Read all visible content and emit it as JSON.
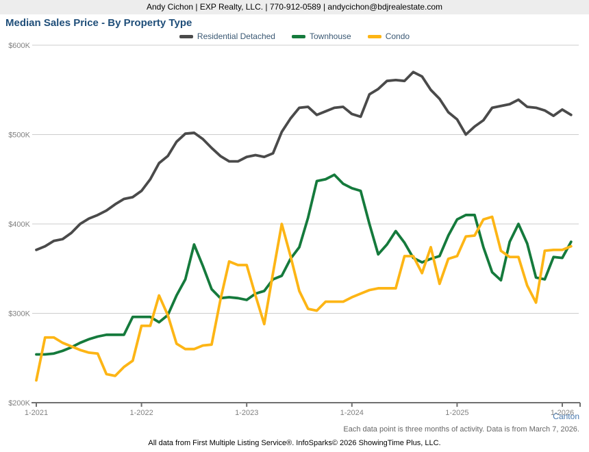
{
  "header": {
    "contact": "Andy Cichon | EXP Realty, LLC. | 770-912-0589 | andycichon@bdjrealestate.com"
  },
  "title": "Median Sales Price - By Property Type",
  "location_label": "Canton",
  "footnote": "Each data point is three months of activity. Data is from March 7, 2026.",
  "attribution": "All data from First Multiple Listing Service®. InfoSparks© 2026 ShowingTime Plus, LLC.",
  "colors": {
    "header_bg": "#EDEDED",
    "title": "#1F4E79",
    "legend_text": "#3A5873",
    "gridline": "#CCCCCC",
    "axis_line": "#6F6F6F",
    "axis_label": "#808080",
    "location_label": "#4677AE",
    "footnote_text": "#666666"
  },
  "chart_data": {
    "type": "line",
    "title": "Median Sales Price - By Property Type",
    "x_unit": "month",
    "x_start": "1-2021",
    "x_end": "2-2026",
    "x_tick_labels": [
      "1-2021",
      "1-2022",
      "1-2023",
      "1-2024",
      "1-2025",
      "1-2026"
    ],
    "y_tick_labels": [
      "$200K",
      "$300K",
      "$400K",
      "$500K",
      "$600K"
    ],
    "y_ticks_k": [
      200,
      300,
      400,
      500,
      600
    ],
    "ylim_k": [
      200,
      600
    ],
    "y_unit": "USD (thousands)",
    "grid": "horizontal",
    "legend_position": "top",
    "months": [
      "1-2021",
      "2-2021",
      "3-2021",
      "4-2021",
      "5-2021",
      "6-2021",
      "7-2021",
      "8-2021",
      "9-2021",
      "10-2021",
      "11-2021",
      "12-2021",
      "1-2022",
      "2-2022",
      "3-2022",
      "4-2022",
      "5-2022",
      "6-2022",
      "7-2022",
      "8-2022",
      "9-2022",
      "10-2022",
      "11-2022",
      "12-2022",
      "1-2023",
      "2-2023",
      "3-2023",
      "4-2023",
      "5-2023",
      "6-2023",
      "7-2023",
      "8-2023",
      "9-2023",
      "10-2023",
      "11-2023",
      "12-2023",
      "1-2024",
      "2-2024",
      "3-2024",
      "4-2024",
      "5-2024",
      "6-2024",
      "7-2024",
      "8-2024",
      "9-2024",
      "10-2024",
      "11-2024",
      "12-2024",
      "1-2025",
      "2-2025",
      "3-2025",
      "4-2025",
      "5-2025",
      "6-2025",
      "7-2025",
      "8-2025",
      "9-2025",
      "10-2025",
      "11-2025",
      "12-2025",
      "1-2026",
      "2-2026"
    ],
    "series": [
      {
        "name": "Residential Detached",
        "color": "#4A4A4A",
        "values_usd_k": [
          371,
          375,
          381,
          383,
          390,
          400,
          406,
          410,
          415,
          422,
          428,
          430,
          437,
          450,
          468,
          476,
          492,
          501,
          502,
          495,
          485,
          476,
          470,
          470,
          475,
          477,
          475,
          479,
          503,
          518,
          530,
          531,
          522,
          526,
          530,
          531,
          523,
          520,
          545,
          551,
          560,
          561,
          560,
          570,
          565,
          550,
          540,
          525,
          517,
          500,
          509,
          516,
          530,
          532,
          534,
          539,
          531,
          530,
          527,
          521,
          528,
          522
        ]
      },
      {
        "name": "Townhouse",
        "color": "#157A3C",
        "values_usd_k": [
          254,
          254,
          255,
          258,
          262,
          267,
          271,
          274,
          276,
          276,
          276,
          296,
          296,
          296,
          290,
          298,
          320,
          338,
          377,
          353,
          327,
          317,
          318,
          317,
          315,
          322,
          325,
          338,
          342,
          361,
          374,
          407,
          448,
          450,
          455,
          445,
          440,
          437,
          400,
          366,
          377,
          392,
          379,
          362,
          357,
          361,
          364,
          387,
          405,
          410,
          410,
          374,
          346,
          337,
          380,
          400,
          378,
          340,
          338,
          363,
          362,
          380
        ]
      },
      {
        "name": "Condo",
        "color": "#FDB515",
        "values_usd_k": [
          225,
          273,
          273,
          267,
          263,
          259,
          256,
          255,
          232,
          230,
          240,
          247,
          286,
          286,
          320,
          298,
          266,
          260,
          260,
          264,
          265,
          315,
          358,
          354,
          354,
          320,
          288,
          345,
          400,
          364,
          325,
          305,
          303,
          313,
          313,
          313,
          318,
          322,
          326,
          328,
          328,
          328,
          364,
          364,
          345,
          374,
          333,
          361,
          364,
          386,
          387,
          405,
          408,
          370,
          363,
          363,
          331,
          312,
          370,
          371,
          371,
          375
        ]
      }
    ]
  }
}
